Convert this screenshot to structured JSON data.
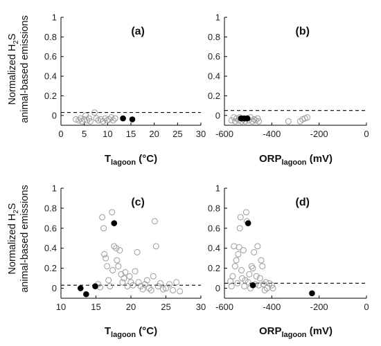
{
  "y_axis_label": {
    "line1": "Normalized H",
    "line1_sub": "2",
    "line1_tail": "S",
    "line2": "animal-based emissions"
  },
  "x_axis_titles": {
    "temperature": {
      "main": "T",
      "sub": "lagoon",
      "tail": " (°C)"
    },
    "orp": {
      "main": "ORP",
      "sub": "lagoon",
      "tail": " (mV)"
    }
  },
  "colors": {
    "open_marker": "#9a9a9a",
    "filled_marker": "#000000",
    "axis": "#000000",
    "threshold_line": "#000000"
  },
  "chart_data": [
    {
      "type": "scatter",
      "panel": "(a)",
      "xlabel": "T_lagoon (°C)",
      "ylabel": "Normalized H2S animal-based emissions",
      "xlim": [
        0,
        30
      ],
      "ylim": [
        -0.1,
        1.0
      ],
      "xticks": [
        0,
        5,
        10,
        15,
        20,
        25,
        30
      ],
      "yticks": [
        0,
        0.2,
        0.4,
        0.6,
        0.8,
        1
      ],
      "threshold": 0.03,
      "series": [
        {
          "style": "open",
          "points": [
            [
              3.2,
              -0.04
            ],
            [
              3.8,
              -0.05
            ],
            [
              4.2,
              -0.03
            ],
            [
              4.5,
              -0.06
            ],
            [
              5.0,
              -0.04
            ],
            [
              5.3,
              0.0
            ],
            [
              5.6,
              -0.05
            ],
            [
              6.0,
              -0.03
            ],
            [
              6.3,
              -0.06
            ],
            [
              7.2,
              0.03
            ],
            [
              7.6,
              -0.03
            ],
            [
              8.0,
              -0.05
            ],
            [
              8.5,
              -0.04
            ],
            [
              9.0,
              -0.06
            ],
            [
              9.5,
              -0.03
            ],
            [
              9.9,
              -0.05
            ],
            [
              10.3,
              -0.04
            ],
            [
              10.8,
              -0.02
            ],
            [
              11.2,
              -0.05
            ],
            [
              11.6,
              -0.03
            ]
          ]
        },
        {
          "style": "filled",
          "points": [
            [
              13.3,
              -0.03
            ],
            [
              15.3,
              -0.04
            ]
          ]
        }
      ]
    },
    {
      "type": "scatter",
      "panel": "(b)",
      "xlabel": "ORP_lagoon (mV)",
      "ylabel": "",
      "xlim": [
        -600,
        0
      ],
      "ylim": [
        -0.1,
        1.0
      ],
      "xticks": [
        -600,
        -400,
        -200,
        0
      ],
      "yticks": [
        0,
        0.2,
        0.4,
        0.6,
        0.8,
        1
      ],
      "threshold": 0.05,
      "series": [
        {
          "style": "open",
          "points": [
            [
              -570,
              -0.05
            ],
            [
              -560,
              -0.02
            ],
            [
              -555,
              -0.06
            ],
            [
              -548,
              -0.03
            ],
            [
              -540,
              -0.05
            ],
            [
              -535,
              -0.02
            ],
            [
              -528,
              -0.06
            ],
            [
              -520,
              -0.04
            ],
            [
              -512,
              -0.06
            ],
            [
              -505,
              -0.03
            ],
            [
              -498,
              -0.05
            ],
            [
              -490,
              -0.02
            ],
            [
              -482,
              -0.06
            ],
            [
              -475,
              -0.04
            ],
            [
              -468,
              -0.05
            ],
            [
              -460,
              -0.03
            ],
            [
              -455,
              -0.06
            ],
            [
              -330,
              -0.06
            ],
            [
              -280,
              -0.06
            ],
            [
              -270,
              -0.04
            ],
            [
              -260,
              -0.03
            ],
            [
              -250,
              -0.02
            ]
          ]
        },
        {
          "style": "filled",
          "points": [
            [
              -530,
              -0.03
            ],
            [
              -517,
              -0.03
            ],
            [
              -503,
              -0.03
            ]
          ]
        }
      ]
    },
    {
      "type": "scatter",
      "panel": "(c)",
      "xlabel": "T_lagoon (°C)",
      "ylabel": "Normalized H2S animal-based emissions",
      "xlim": [
        10,
        30
      ],
      "ylim": [
        -0.1,
        1.0
      ],
      "xticks": [
        10,
        15,
        20,
        25,
        30
      ],
      "yticks": [
        0,
        0.2,
        0.4,
        0.6,
        0.8,
        1
      ],
      "threshold": 0.03,
      "series": [
        {
          "style": "open",
          "points": [
            [
              15.3,
              0.04
            ],
            [
              15.6,
              0.01
            ],
            [
              15.9,
              0.71
            ],
            [
              16.1,
              0.6
            ],
            [
              16.2,
              0.34
            ],
            [
              16.4,
              0.3
            ],
            [
              16.6,
              0.22
            ],
            [
              16.8,
              0.08
            ],
            [
              17.0,
              0.02
            ],
            [
              17.3,
              0.76
            ],
            [
              17.4,
              0.18
            ],
            [
              17.6,
              0.42
            ],
            [
              17.9,
              0.4
            ],
            [
              18.0,
              0.28
            ],
            [
              18.2,
              0.22
            ],
            [
              18.4,
              0.38
            ],
            [
              18.6,
              0.14
            ],
            [
              18.8,
              0.06
            ],
            [
              19.0,
              0.1
            ],
            [
              19.2,
              0.16
            ],
            [
              19.5,
              0.02
            ],
            [
              19.8,
              0.12
            ],
            [
              20.0,
              0.06
            ],
            [
              20.3,
              0.03
            ],
            [
              20.6,
              0.17
            ],
            [
              20.9,
              0.36
            ],
            [
              21.1,
              0.06
            ],
            [
              21.4,
              0.02
            ],
            [
              21.7,
              -0.01
            ],
            [
              22.0,
              0.04
            ],
            [
              22.3,
              0.08
            ],
            [
              22.6,
              0.0
            ],
            [
              22.9,
              -0.02
            ],
            [
              23.2,
              0.12
            ],
            [
              23.4,
              0.67
            ],
            [
              23.6,
              0.42
            ],
            [
              23.9,
              0.02
            ],
            [
              24.2,
              0.05
            ],
            [
              24.6,
              -0.01
            ],
            [
              25.0,
              0.0
            ],
            [
              25.5,
              0.04
            ],
            [
              26.0,
              -0.02
            ],
            [
              26.5,
              0.06
            ],
            [
              27.0,
              -0.03
            ]
          ]
        },
        {
          "style": "filled",
          "points": [
            [
              12.8,
              0.0
            ],
            [
              13.6,
              -0.06
            ],
            [
              14.9,
              0.02
            ],
            [
              17.6,
              0.65
            ]
          ]
        }
      ]
    },
    {
      "type": "scatter",
      "panel": "(d)",
      "xlabel": "ORP_lagoon (mV)",
      "ylabel": "",
      "xlim": [
        -600,
        0
      ],
      "ylim": [
        -0.1,
        1.0
      ],
      "xticks": [
        -600,
        -400,
        -200,
        0
      ],
      "yticks": [
        0,
        0.2,
        0.4,
        0.6,
        0.8,
        1
      ],
      "threshold": 0.05,
      "series": [
        {
          "style": "open",
          "points": [
            [
              -575,
              0.07
            ],
            [
              -570,
              0.02
            ],
            [
              -565,
              0.12
            ],
            [
              -560,
              0.42
            ],
            [
              -555,
              0.22
            ],
            [
              -550,
              0.28
            ],
            [
              -545,
              0.05
            ],
            [
              -542,
              0.34
            ],
            [
              -538,
              0.41
            ],
            [
              -535,
              0.6
            ],
            [
              -532,
              0.71
            ],
            [
              -528,
              0.18
            ],
            [
              -525,
              0.1
            ],
            [
              -520,
              0.38
            ],
            [
              -516,
              0.02
            ],
            [
              -512,
              0.08
            ],
            [
              -508,
              0.76
            ],
            [
              -505,
              0.67
            ],
            [
              -500,
              0.06
            ],
            [
              -495,
              0.14
            ],
            [
              -490,
              0.0
            ],
            [
              -485,
              0.22
            ],
            [
              -480,
              0.2
            ],
            [
              -475,
              0.36
            ],
            [
              -470,
              0.04
            ],
            [
              -465,
              0.12
            ],
            [
              -460,
              0.42
            ],
            [
              -455,
              0.03
            ],
            [
              -450,
              0.1
            ],
            [
              -445,
              0.28
            ],
            [
              -440,
              0.22
            ],
            [
              -435,
              0.04
            ],
            [
              -430,
              -0.02
            ],
            [
              -425,
              0.06
            ],
            [
              -420,
              0.0
            ],
            [
              -410,
              0.05
            ],
            [
              -400,
              0.03
            ],
            [
              -395,
              0.0
            ]
          ]
        },
        {
          "style": "filled",
          "points": [
            [
              -500,
              0.65
            ],
            [
              -480,
              0.03
            ],
            [
              -230,
              -0.05
            ]
          ]
        }
      ]
    }
  ]
}
